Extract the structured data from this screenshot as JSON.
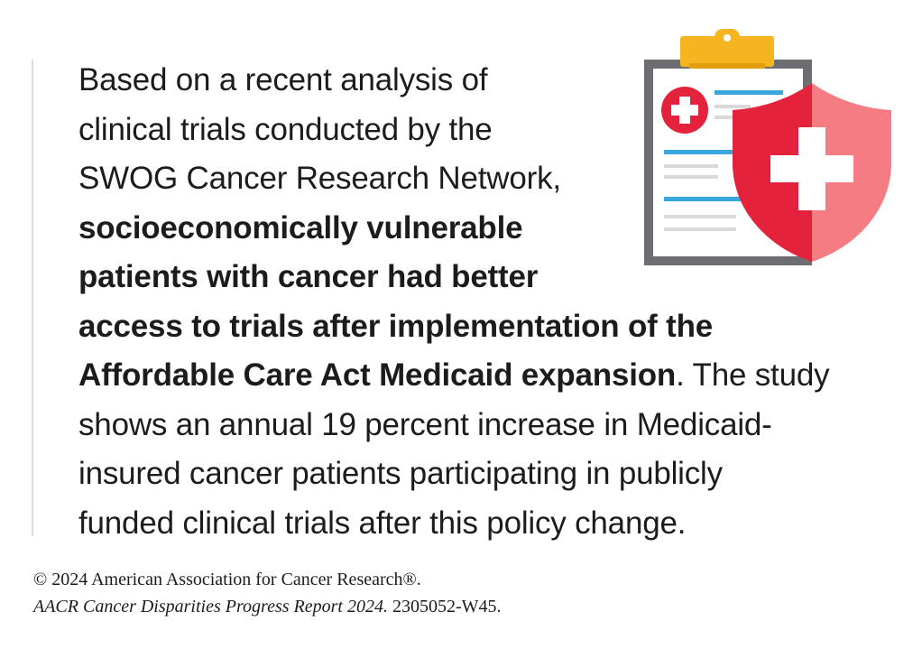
{
  "body": {
    "line1": "Based on a recent analysis of",
    "line2": "clinical trials conducted by the",
    "line3": "SWOG Cancer Research Network,",
    "line4": "socioeconomically vulnerable",
    "line5": "patients with cancer had better",
    "line6": "access to trials after implementation of the",
    "line7_bold": "Affordable Care Act Medicaid expansion",
    "line7_rest": ". The study",
    "line8": "shows an annual 19 percent increase in Medicaid-",
    "line9": "insured cancer patients participating in publicly",
    "line10": "funded clinical trials after this policy change."
  },
  "credit": {
    "copyright": "© 2024 American Association for Cancer Research®.",
    "report_title": "AACR Cancer Disparities Progress Report 2024.",
    "report_code": " 2305052-W45."
  },
  "illustration": {
    "icons": [
      "clipboard-icon",
      "medical-cross-icon",
      "shield-icon"
    ],
    "colors": {
      "clipboard_frame": "#6d6e71",
      "clip": "#f6b51e",
      "lines_blue": "#3aa7dc",
      "lines_gray": "#d9d9d9",
      "shield_red": "#e5223c",
      "shield_pink": "#f47c82",
      "cross_white": "#ffffff"
    }
  }
}
